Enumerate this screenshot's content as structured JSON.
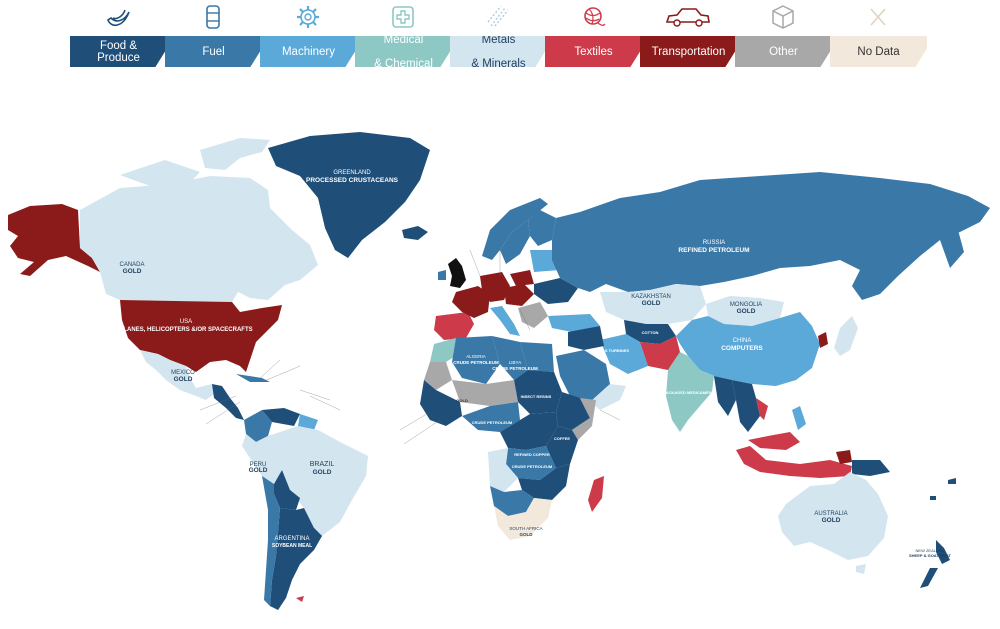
{
  "legend": {
    "categories": [
      {
        "label": "Food & Produce",
        "line1": "Food &",
        "line2": "Produce",
        "color": "#1f4e79",
        "icon": "banana-icon"
      },
      {
        "label": "Fuel",
        "line1": "Fuel",
        "line2": "",
        "color": "#3a78a8",
        "icon": "barrel-icon"
      },
      {
        "label": "Machinery",
        "line1": "Machinery",
        "line2": "",
        "color": "#5aa9d8",
        "icon": "gear-icon"
      },
      {
        "label": "Medical & Chemical",
        "line1": "Medical",
        "line2": "& Chemical",
        "color": "#8ec8c4",
        "icon": "medical-cross-icon"
      },
      {
        "label": "Metals & Minerals",
        "line1": "Metals",
        "line2": "& Minerals",
        "color": "#d3e5ef",
        "icon": "minerals-icon"
      },
      {
        "label": "Textiles",
        "line1": "Textiles",
        "line2": "",
        "color": "#cd3a4a",
        "icon": "yarn-ball-icon"
      },
      {
        "label": "Transportation",
        "line1": "Transportation",
        "line2": "",
        "color": "#8b1a1a",
        "icon": "car-icon"
      },
      {
        "label": "Other",
        "line1": "Other",
        "line2": "",
        "color": "#a8a8a8",
        "icon": "box-icon"
      },
      {
        "label": "No Data",
        "line1": "No Data",
        "line2": "",
        "color": "#f2e8dc",
        "icon": "x-icon"
      }
    ]
  },
  "map": {
    "ocean_color": "#ffffff",
    "country_labels": {
      "greenland": {
        "name": "GREENLAND",
        "product": "PROCESSED CRUSTACEANS"
      },
      "canada": {
        "name": "CANADA",
        "product": "GOLD"
      },
      "usa": {
        "name": "USA",
        "product": "PLANES, HELICOPTERS &/OR SPACECRAFTS"
      },
      "mexico": {
        "name": "MEXICO",
        "product": "GOLD"
      },
      "brazil": {
        "name": "BRAZIL",
        "product": "GOLD"
      },
      "peru": {
        "name": "PERU",
        "product": "GOLD"
      },
      "argentina": {
        "name": "ARGENTINA",
        "product": "SOYBEAN MEAL"
      },
      "russia": {
        "name": "RUSSIA",
        "product": "REFINED PETROLEUM"
      },
      "kazakhstan": {
        "name": "KAZAKHSTAN",
        "product": "GOLD"
      },
      "mongolia": {
        "name": "MONGOLIA",
        "product": "GOLD"
      },
      "china": {
        "name": "CHINA",
        "product": "COMPUTERS"
      },
      "australia": {
        "name": "AUSTRALIA",
        "product": "GOLD"
      },
      "algeria": {
        "name": "ALGERIA",
        "product": "CRUDE PETROLEUM"
      },
      "libya": {
        "name": "LIBYA",
        "product": "CRUDE PETROLEUM"
      },
      "south_africa": {
        "name": "SOUTH AFRICA",
        "product": "GOLD"
      },
      "new_zealand": {
        "name": "NEW ZEALAND",
        "product": "SHEEP & GOAT MEAT"
      }
    },
    "small_labels": [
      "REFINED COPPER",
      "CRUDE PETROLEUM",
      "COFFEE",
      "CRUDE PETROLEUM",
      "GOLD",
      "PACKAGED MEDICAMENTS",
      "INSECT RESINS",
      "GAS TURBINES",
      "COTTON"
    ]
  }
}
